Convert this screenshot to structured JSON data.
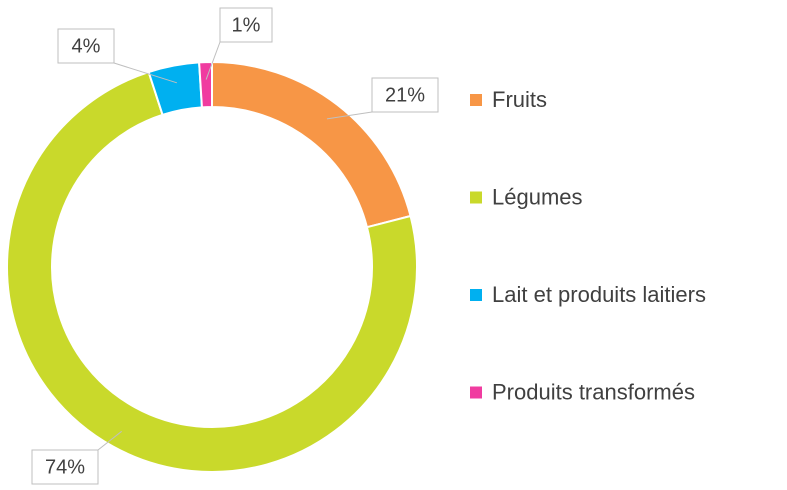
{
  "chart_data": {
    "type": "donut",
    "categories": [
      "Fruits",
      "Légumes",
      "Lait et produits laitiers",
      "Produits transformés"
    ],
    "values": [
      21,
      74,
      4,
      1
    ],
    "value_labels": [
      "21%",
      "74%",
      "4%",
      "1%"
    ],
    "colors": [
      "#f79646",
      "#c9d92b",
      "#00b0f0",
      "#f03ca0"
    ],
    "legend": "right"
  }
}
